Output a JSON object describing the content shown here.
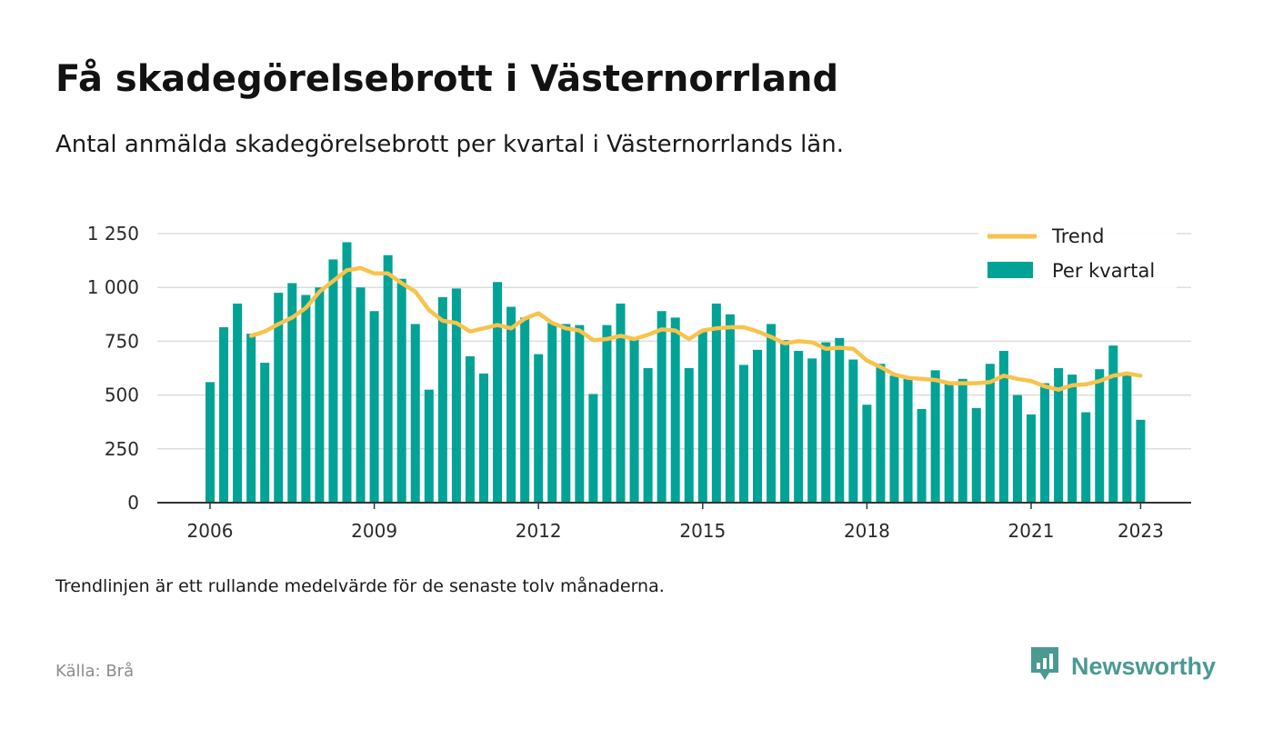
{
  "title": "Få skadegörelsebrott i Västernorrland",
  "subtitle": "Antal anmälda skadegörelsebrott per kvartal i Västernorrlands län.",
  "note": "Trendlinjen är ett rullande medelvärde för de senaste tolv månaderna.",
  "source": "Källa: Brå",
  "brand": {
    "name": "Newsworthy",
    "icon": "newsworthy-logo-icon"
  },
  "colors": {
    "bars": "#00a396",
    "trend": "#f8c34c",
    "grid": "#dddddd",
    "axis": "#333333"
  },
  "chart_data": {
    "type": "bar",
    "title": "",
    "xlabel": "",
    "ylabel": "",
    "ylim": [
      0,
      1250
    ],
    "yticks": [
      0,
      250,
      500,
      750,
      1000,
      1250
    ],
    "ytick_labels": [
      "0",
      "250",
      "500",
      "750",
      "1 000",
      "1 250"
    ],
    "xticks": [
      "2006",
      "2009",
      "2012",
      "2015",
      "2018",
      "2021",
      "2023"
    ],
    "grid": true,
    "legend_position": "top-right",
    "start": "2006 Q1",
    "series": [
      {
        "name": "Per kvartal",
        "type": "bar",
        "values": [
          560,
          815,
          925,
          785,
          650,
          975,
          1020,
          965,
          1000,
          1130,
          1210,
          1000,
          890,
          1150,
          1040,
          830,
          525,
          955,
          995,
          680,
          600,
          1025,
          910,
          860,
          690,
          835,
          830,
          825,
          505,
          825,
          925,
          760,
          625,
          890,
          860,
          625,
          800,
          925,
          875,
          640,
          710,
          830,
          755,
          705,
          670,
          745,
          765,
          665,
          455,
          645,
          590,
          580,
          435,
          615,
          555,
          575,
          440,
          645,
          705,
          500,
          410,
          555,
          625,
          595,
          420,
          620,
          730,
          605,
          385
        ]
      },
      {
        "name": "Trend",
        "type": "line",
        "values": [
          null,
          null,
          null,
          775,
          795,
          830,
          860,
          905,
          980,
          1030,
          1080,
          1090,
          1065,
          1065,
          1020,
          980,
          895,
          845,
          835,
          795,
          810,
          825,
          810,
          855,
          880,
          835,
          810,
          800,
          755,
          760,
          775,
          760,
          780,
          805,
          800,
          760,
          800,
          810,
          815,
          815,
          795,
          770,
          740,
          750,
          745,
          715,
          720,
          715,
          660,
          630,
          595,
          580,
          575,
          570,
          555,
          555,
          555,
          560,
          590,
          575,
          565,
          540,
          525,
          545,
          550,
          565,
          590,
          600,
          590
        ]
      }
    ]
  }
}
